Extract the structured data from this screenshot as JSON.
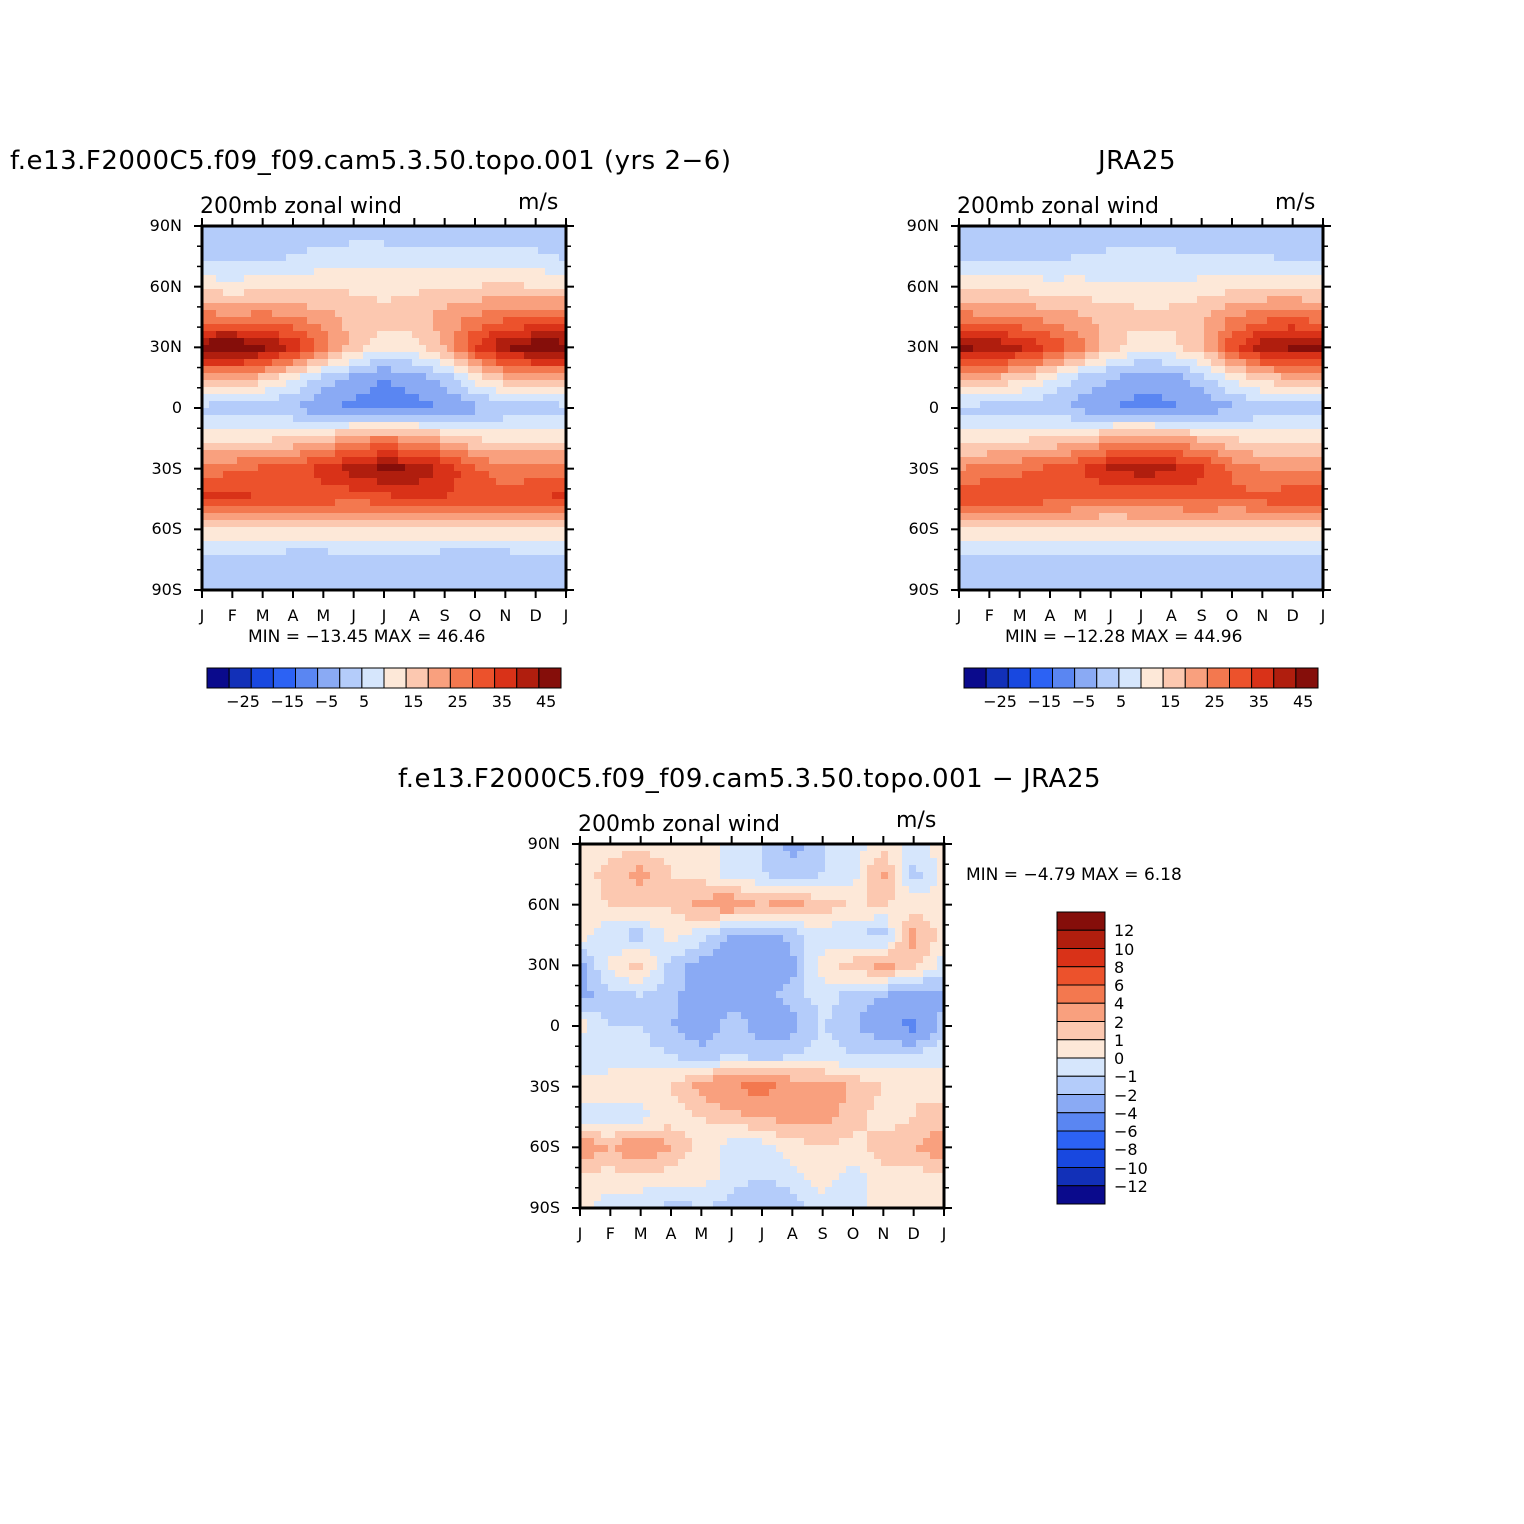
{
  "chart_data": [
    {
      "type": "heatmap",
      "title": "f.e13.F2000C5.f09_f09.cam5.3.50.topo.001 (yrs 2−6)",
      "left_label": "200mb zonal wind",
      "right_label": "m/s",
      "x_labels": [
        "J",
        "F",
        "M",
        "A",
        "M",
        "J",
        "J",
        "A",
        "S",
        "O",
        "N",
        "D",
        "J"
      ],
      "y_labels": [
        "90N",
        "60N",
        "30N",
        "0",
        "30S",
        "60S",
        "90S"
      ],
      "stats": "MIN = −13.45  MAX =   46.46",
      "colorbar": {
        "colors": [
          "#0a0a8c",
          "#1230b8",
          "#1848e0",
          "#2c62f4",
          "#5a86f2",
          "#8aaaf4",
          "#b4ccfa",
          "#d6e6fc",
          "#fde8d8",
          "#fcc8b0",
          "#f9a07e",
          "#f3784f",
          "#ec522c",
          "#d93218",
          "#b01e0e",
          "#850e0a"
        ],
        "labels": [
          "−25",
          "−15",
          "−5",
          "5",
          "15",
          "25",
          "35",
          "45"
        ]
      },
      "field": {
        "x_months": [
          1,
          2,
          3,
          4,
          5,
          6,
          7,
          8,
          9,
          10,
          11,
          12,
          13
        ],
        "y_lat": [
          90,
          75,
          60,
          45,
          30,
          15,
          0,
          -15,
          -30,
          -45,
          -60,
          -75,
          -90
        ],
        "values": [
          [
            -4,
            -4,
            -4,
            -4,
            -4,
            -4,
            -4,
            -4,
            -4,
            -4,
            -4,
            -4,
            -4
          ],
          [
            -2,
            -2,
            -1,
            0,
            2,
            3,
            3,
            2,
            1,
            2,
            2,
            1,
            -1
          ],
          [
            8,
            7,
            8,
            8,
            9,
            9,
            8,
            9,
            10,
            10,
            11,
            10,
            9
          ],
          [
            22,
            21,
            22,
            20,
            17,
            14,
            12,
            13,
            17,
            21,
            23,
            24,
            23
          ],
          [
            44,
            46,
            42,
            34,
            24,
            12,
            6,
            8,
            16,
            30,
            40,
            44,
            44
          ],
          [
            18,
            17,
            13,
            6,
            -2,
            -6,
            -10,
            -8,
            -3,
            8,
            14,
            17,
            18
          ],
          [
            -2,
            -3,
            -4,
            -5,
            -9,
            -12,
            -13,
            -12,
            -10,
            -7,
            -4,
            -3,
            -2
          ],
          [
            8,
            8,
            9,
            10,
            12,
            18,
            20,
            18,
            14,
            10,
            8,
            8,
            8
          ],
          [
            22,
            24,
            26,
            28,
            32,
            38,
            42,
            40,
            34,
            26,
            22,
            22,
            22
          ],
          [
            32,
            32,
            30,
            28,
            28,
            26,
            28,
            30,
            30,
            28,
            28,
            30,
            32
          ],
          [
            10,
            10,
            9,
            8,
            8,
            9,
            9,
            9,
            8,
            8,
            8,
            9,
            10
          ],
          [
            -2,
            -2,
            -3,
            -3,
            -3,
            -2,
            -2,
            -2,
            -3,
            -3,
            -3,
            -2,
            -2
          ],
          [
            -5,
            -5,
            -5,
            -5,
            -5,
            -5,
            -5,
            -5,
            -5,
            -5,
            -5,
            -5,
            -5
          ]
        ]
      }
    },
    {
      "type": "heatmap",
      "title": "JRA25",
      "left_label": "200mb zonal wind",
      "right_label": "m/s",
      "x_labels": [
        "J",
        "F",
        "M",
        "A",
        "M",
        "J",
        "J",
        "A",
        "S",
        "O",
        "N",
        "D",
        "J"
      ],
      "y_labels": [
        "90N",
        "60N",
        "30N",
        "0",
        "30S",
        "60S",
        "90S"
      ],
      "stats": "MIN = −12.28  MAX =   44.96",
      "colorbar": {
        "colors": [
          "#0a0a8c",
          "#1230b8",
          "#1848e0",
          "#2c62f4",
          "#5a86f2",
          "#8aaaf4",
          "#b4ccfa",
          "#d6e6fc",
          "#fde8d8",
          "#fcc8b0",
          "#f9a07e",
          "#f3784f",
          "#ec522c",
          "#d93218",
          "#b01e0e",
          "#850e0a"
        ],
        "labels": [
          "−25",
          "−15",
          "−5",
          "5",
          "15",
          "25",
          "35",
          "45"
        ]
      },
      "field": {
        "x_months": [
          1,
          2,
          3,
          4,
          5,
          6,
          7,
          8,
          9,
          10,
          11,
          12,
          13
        ],
        "y_lat": [
          90,
          75,
          60,
          45,
          30,
          15,
          0,
          -15,
          -30,
          -45,
          -60,
          -75,
          -90
        ],
        "values": [
          [
            -4,
            -4,
            -4,
            -4,
            -4,
            -4,
            -4,
            -4,
            -4,
            -4,
            -4,
            -4,
            -4
          ],
          [
            -1,
            -1,
            -1,
            -1,
            0,
            1,
            1,
            1,
            0,
            0,
            0,
            -1,
            -1
          ],
          [
            8,
            8,
            8,
            7,
            7,
            6,
            6,
            6,
            7,
            8,
            9,
            9,
            8
          ],
          [
            22,
            21,
            20,
            18,
            16,
            13,
            12,
            12,
            15,
            20,
            23,
            24,
            22
          ],
          [
            42,
            40,
            36,
            30,
            22,
            12,
            6,
            8,
            14,
            28,
            38,
            42,
            42
          ],
          [
            16,
            15,
            12,
            6,
            -1,
            -5,
            -8,
            -7,
            -2,
            6,
            12,
            15,
            16
          ],
          [
            -2,
            -2,
            -3,
            -4,
            -7,
            -10,
            -12,
            -11,
            -9,
            -6,
            -4,
            -3,
            -2
          ],
          [
            8,
            8,
            9,
            10,
            12,
            16,
            18,
            16,
            14,
            10,
            8,
            8,
            8
          ],
          [
            20,
            22,
            24,
            26,
            30,
            36,
            38,
            36,
            32,
            24,
            20,
            20,
            20
          ],
          [
            30,
            30,
            28,
            27,
            26,
            24,
            25,
            26,
            27,
            26,
            27,
            28,
            30
          ],
          [
            10,
            10,
            9,
            8,
            8,
            8,
            8,
            8,
            8,
            8,
            8,
            9,
            10
          ],
          [
            -1,
            -1,
            -2,
            -2,
            -2,
            -1,
            -1,
            -1,
            -2,
            -2,
            -2,
            -1,
            -1
          ],
          [
            -4,
            -4,
            -4,
            -4,
            -4,
            -4,
            -4,
            -4,
            -4,
            -4,
            -4,
            -4,
            -4
          ]
        ]
      }
    },
    {
      "type": "heatmap",
      "title": "f.e13.F2000C5.f09_f09.cam5.3.50.topo.001 − JRA25",
      "left_label": "200mb zonal wind",
      "right_label": "m/s",
      "x_labels": [
        "J",
        "F",
        "M",
        "A",
        "M",
        "J",
        "J",
        "A",
        "S",
        "O",
        "N",
        "D",
        "J"
      ],
      "y_labels": [
        "90N",
        "60N",
        "30N",
        "0",
        "30S",
        "60S",
        "90S"
      ],
      "stats": "MIN = −4.79  MAX =   6.18",
      "colorbar": {
        "colors": [
          "#0a0a8c",
          "#1230b8",
          "#1848e0",
          "#2c62f4",
          "#5a86f2",
          "#8aaaf4",
          "#b4ccfa",
          "#d6e6fc",
          "#fde8d8",
          "#fcc8b0",
          "#f9a07e",
          "#f3784f",
          "#ec522c",
          "#d93218",
          "#b01e0e",
          "#850e0a"
        ],
        "labels": [
          "12",
          "10",
          "8",
          "6",
          "4",
          "2",
          "1",
          "0",
          "−1",
          "−2",
          "−4",
          "−6",
          "−8",
          "−10",
          "−12"
        ]
      },
      "field": {
        "x_months": [
          1,
          2,
          3,
          4,
          5,
          6,
          7,
          8,
          9,
          10,
          11,
          12,
          13
        ],
        "y_lat": [
          90,
          75,
          60,
          45,
          30,
          15,
          0,
          -15,
          -30,
          -45,
          -60,
          -75,
          -90
        ],
        "values": [
          [
            0.5,
            0.5,
            0.5,
            0.5,
            0.5,
            -0.5,
            -1,
            -2.5,
            -1,
            -0.5,
            0.5,
            -0.5,
            0.5
          ],
          [
            0.5,
            1.5,
            2.5,
            1,
            0.5,
            -0.5,
            -1,
            -1.5,
            -1,
            -0.5,
            2.5,
            -1.5,
            0.5
          ],
          [
            0.5,
            1,
            1.5,
            1,
            2.5,
            3,
            2,
            2.5,
            1.5,
            1,
            1,
            0.5,
            0.5
          ],
          [
            0.5,
            -1,
            -1.5,
            0.5,
            -0.5,
            -2,
            -2.5,
            -1.5,
            -0.5,
            -1,
            -1.5,
            2.5,
            0.5
          ],
          [
            -2.5,
            0.5,
            1.5,
            -1.5,
            -2.5,
            -3,
            -3,
            -2.5,
            0.5,
            1.5,
            2.5,
            1.5,
            -0.5
          ],
          [
            -2.5,
            -1.5,
            -1,
            -1.5,
            -3,
            -2.5,
            -2.5,
            -1.5,
            -0.5,
            -1.5,
            -2,
            -3,
            -2.5
          ],
          [
            0.5,
            -1,
            -1,
            -2,
            -3,
            -1.5,
            -2.5,
            -2.5,
            -1,
            -1.5,
            -3.5,
            -4.5,
            -1
          ],
          [
            -1,
            -1,
            -0.5,
            -1,
            -1.5,
            -1,
            -1.5,
            -1,
            -0.5,
            -1,
            -0.5,
            -0.5,
            -0.5
          ],
          [
            0.5,
            1,
            0.5,
            1,
            2.5,
            4,
            5,
            3,
            2.5,
            2,
            1,
            1,
            0.5
          ],
          [
            -0.5,
            -1,
            -0.5,
            0.5,
            1,
            1.5,
            2,
            2.5,
            2.5,
            1.5,
            0.5,
            1,
            1.5
          ],
          [
            3,
            2,
            3.5,
            2,
            0.5,
            -0.5,
            -0.5,
            0.5,
            1,
            0.5,
            1.5,
            2,
            3
          ],
          [
            0.5,
            0.5,
            0.5,
            0.5,
            0.5,
            -0.5,
            -1,
            -0.5,
            0.5,
            -0.5,
            0.5,
            0.5,
            0.5
          ],
          [
            0.5,
            -0.5,
            -0.5,
            -1.5,
            -1,
            -1.5,
            -2,
            -1.5,
            -0.5,
            -0.5,
            0.5,
            0.5,
            0.5
          ]
        ]
      }
    }
  ]
}
